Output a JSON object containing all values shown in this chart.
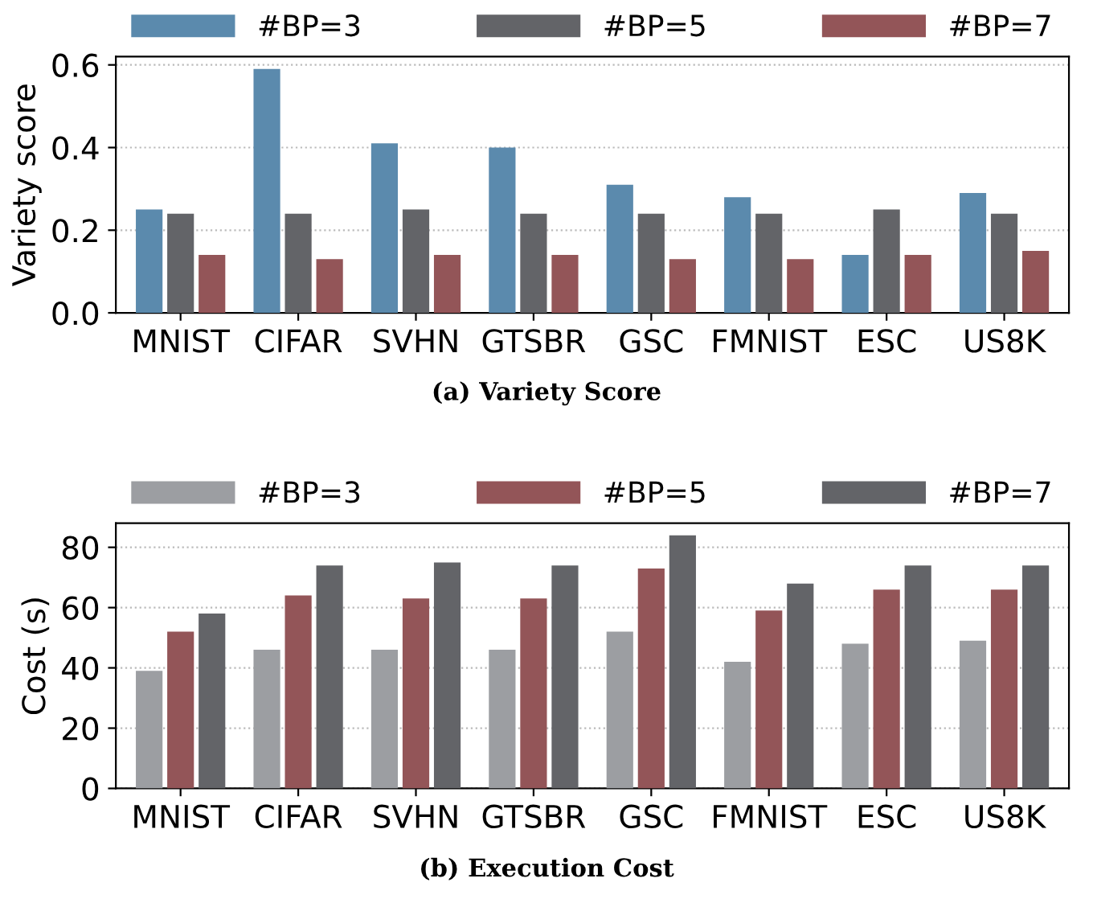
{
  "chart_data": [
    {
      "type": "bar",
      "title": "(a) Variety Score",
      "ylabel": "Variety score",
      "categories": [
        "MNIST",
        "CIFAR",
        "SVHN",
        "GTSBR",
        "GSC",
        "FMNIST",
        "ESC",
        "US8K"
      ],
      "series": [
        {
          "name": "#BP=3",
          "color": "#5b8aad",
          "values": [
            0.25,
            0.59,
            0.41,
            0.4,
            0.31,
            0.28,
            0.14,
            0.29
          ]
        },
        {
          "name": "#BP=5",
          "color": "#636468",
          "values": [
            0.24,
            0.24,
            0.25,
            0.24,
            0.24,
            0.24,
            0.25,
            0.24
          ]
        },
        {
          "name": "#BP=7",
          "color": "#935558",
          "values": [
            0.14,
            0.13,
            0.14,
            0.14,
            0.13,
            0.13,
            0.14,
            0.15
          ]
        }
      ],
      "ylim": [
        0,
        0.62
      ],
      "yticks": [
        {
          "value": 0,
          "label": "0.0"
        },
        0.2,
        0.4,
        0.6
      ],
      "grid": "y",
      "legend": "top"
    },
    {
      "type": "bar",
      "title": "(b) Execution Cost",
      "ylabel": "Cost (s)",
      "categories": [
        "MNIST",
        "CIFAR",
        "SVHN",
        "GTSBR",
        "GSC",
        "FMNIST",
        "ESC",
        "US8K"
      ],
      "series": [
        {
          "name": "#BP=3",
          "color": "#9c9ea2",
          "values": [
            39,
            46,
            46,
            46,
            52,
            42,
            48,
            49
          ]
        },
        {
          "name": "#BP=5",
          "color": "#935558",
          "values": [
            52,
            64,
            63,
            63,
            73,
            59,
            66,
            66
          ]
        },
        {
          "name": "#BP=7",
          "color": "#636468",
          "values": [
            58,
            74,
            75,
            74,
            84,
            68,
            74,
            74
          ]
        }
      ],
      "ylim": [
        0,
        88
      ],
      "yticks": [
        0,
        20,
        40,
        60,
        80
      ],
      "grid": "y",
      "legend": "top"
    }
  ]
}
